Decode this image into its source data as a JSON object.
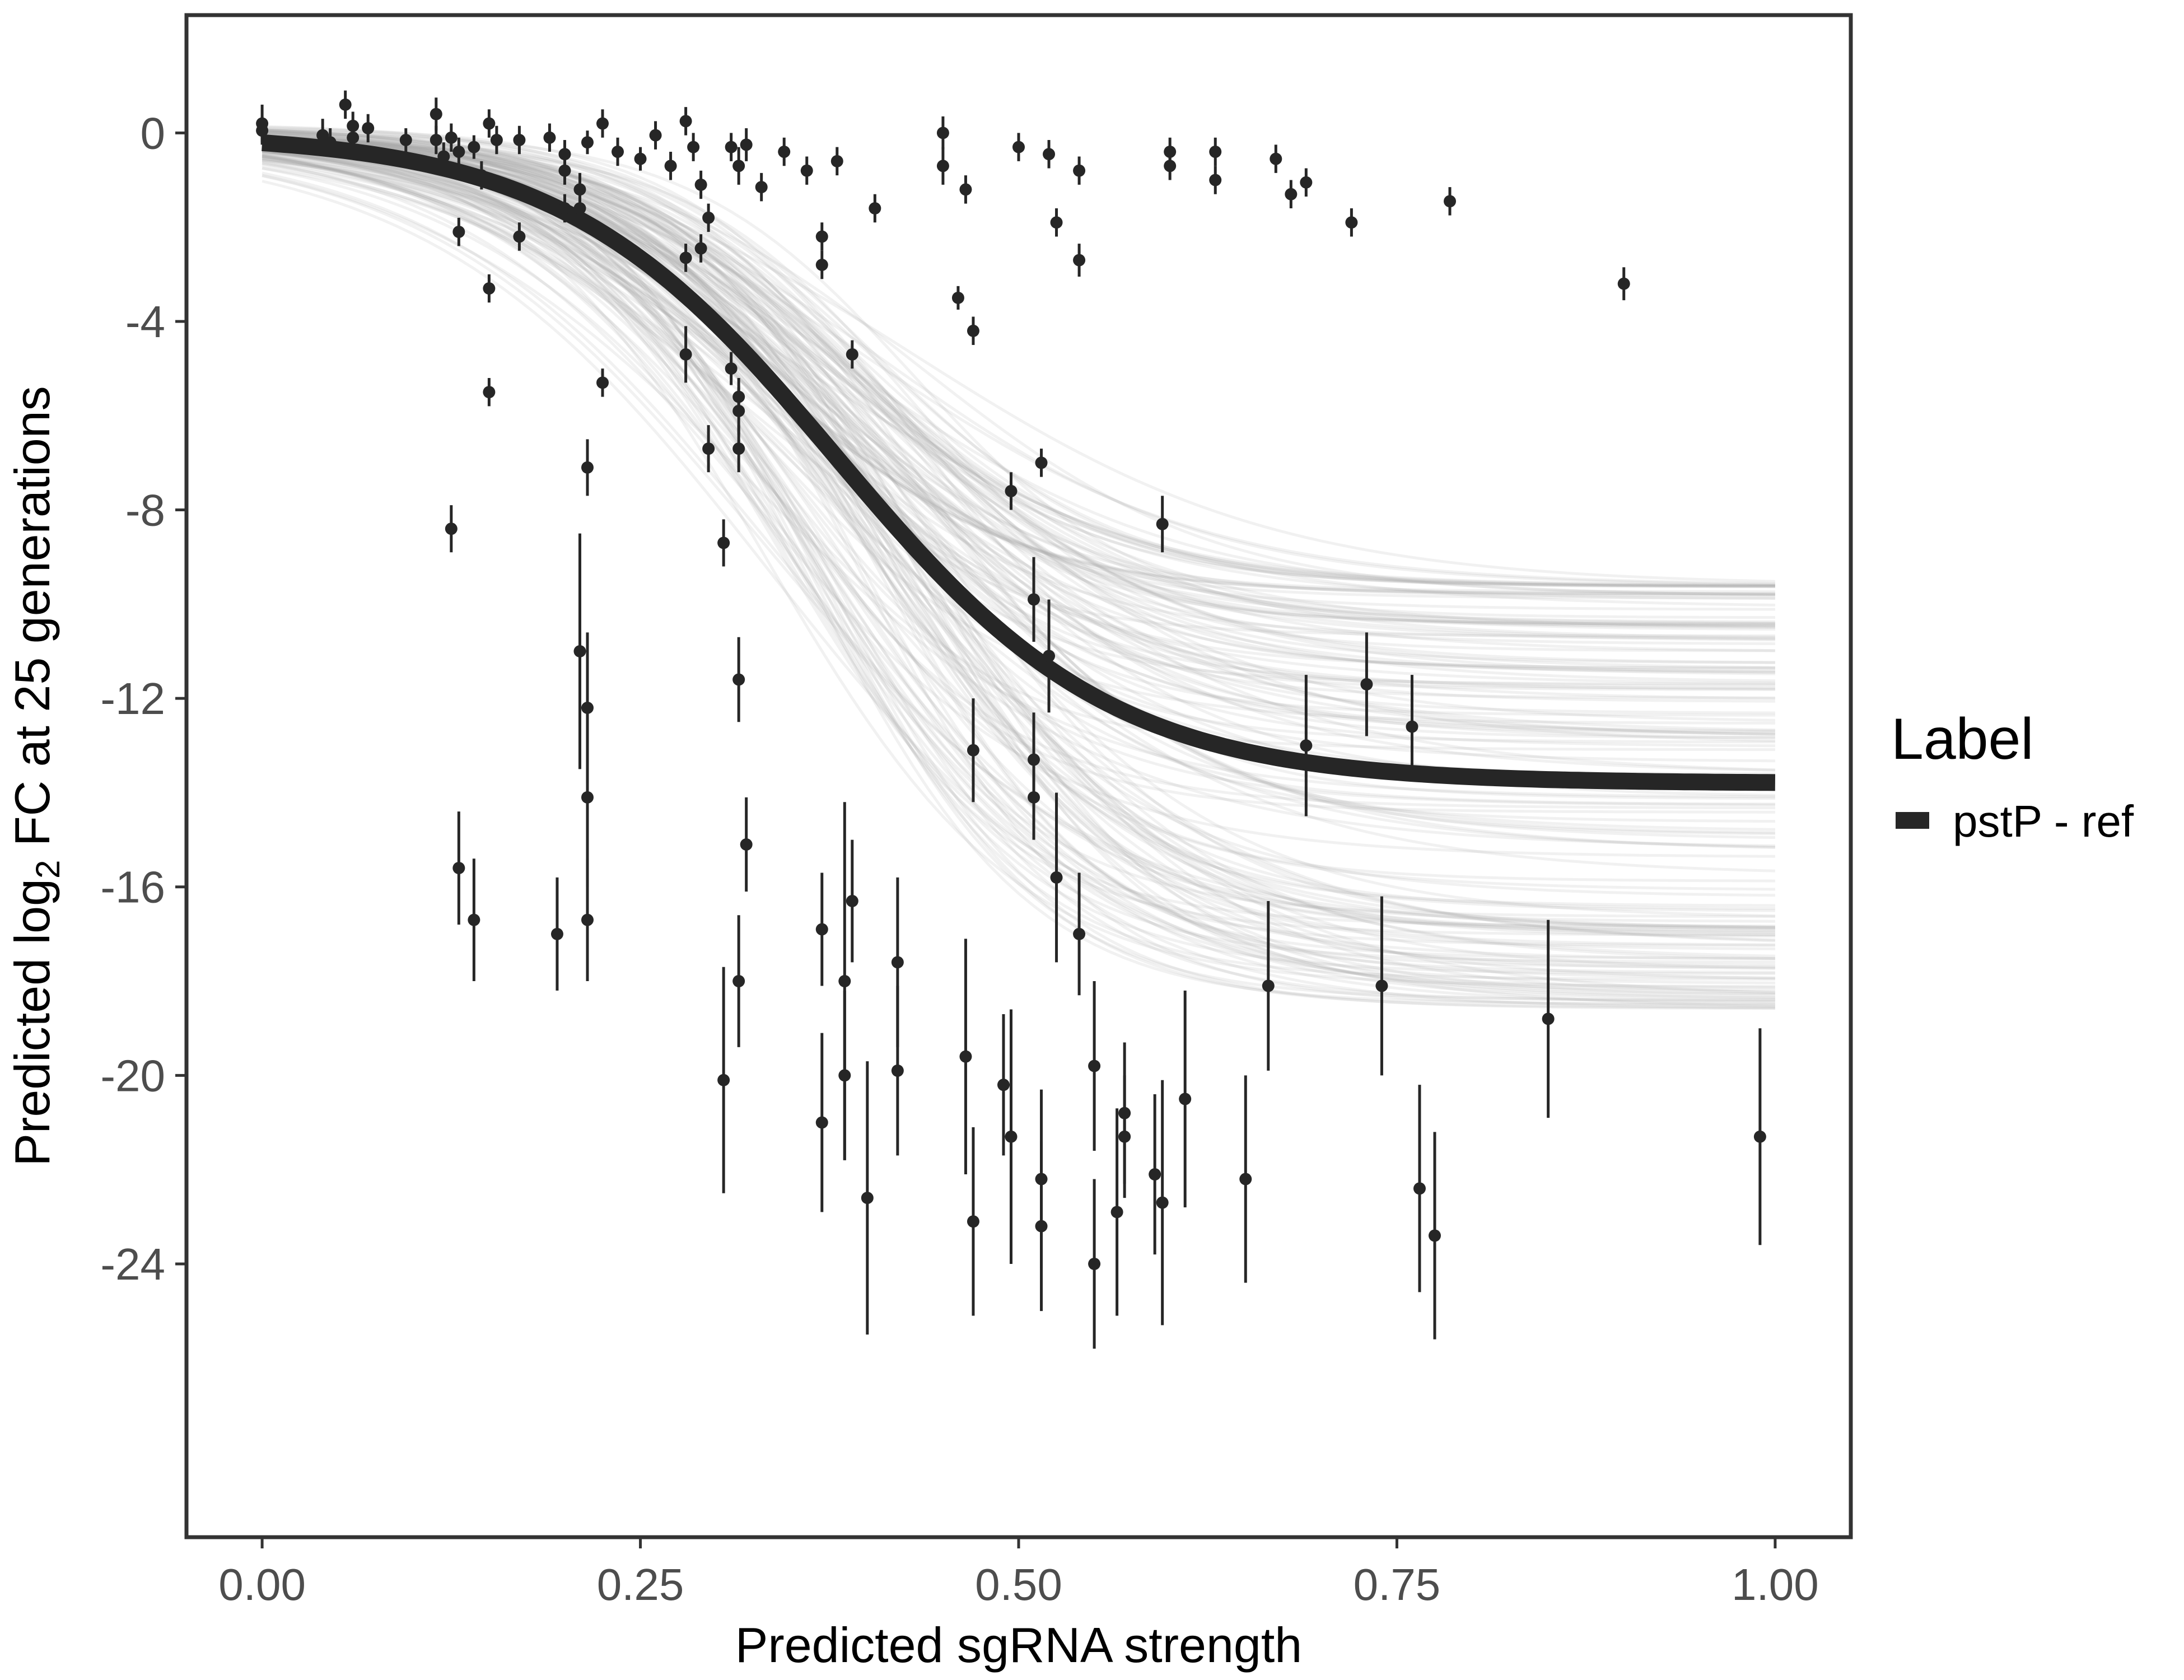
{
  "colors": {
    "background": "#ffffff",
    "panel_border": "#333333",
    "fit_line": "#262626",
    "posterior_draws": "#a6a6a6",
    "points": "#262626",
    "tick_text": "#4d4d4d"
  },
  "chart_data": {
    "type": "scatter",
    "title": "",
    "xlabel": "Predicted sgRNA strength",
    "ylabel_prefix": "Predicted  log",
    "ylabel_subscript": "2",
    "ylabel_suffix": " FC at 25 generations",
    "xlim": [
      -0.05,
      1.05
    ],
    "ylim": [
      -29.8,
      2.5
    ],
    "x_ticks": [
      0.0,
      0.25,
      0.5,
      0.75,
      1.0
    ],
    "x_tick_labels": [
      "0.00",
      "0.25",
      "0.50",
      "0.75",
      "1.00"
    ],
    "y_ticks": [
      0,
      -4,
      -8,
      -12,
      -16,
      -20,
      -24
    ],
    "y_tick_labels": [
      "0",
      "-4",
      "-8",
      "-12",
      "-16",
      "-20",
      "-24"
    ],
    "grid": false,
    "legend": {
      "title": "Label",
      "position": "right",
      "entries": [
        "pstP - ref"
      ]
    },
    "fit_curve": {
      "name": "pstP - ref",
      "form": "logistic",
      "upper": 0.0,
      "lower": -13.8,
      "midpoint": 0.38,
      "slope": 11.0,
      "ribbon_lower_asymptote_range": [
        -18.6,
        -9.6
      ]
    },
    "points": [
      {
        "x": 0.0,
        "y": 0.2,
        "err": 0.4
      },
      {
        "x": 0.0,
        "y": 0.05,
        "err": 0.3
      },
      {
        "x": 0.04,
        "y": -0.05,
        "err": 0.35
      },
      {
        "x": 0.045,
        "y": -0.2,
        "err": 0.3
      },
      {
        "x": 0.055,
        "y": 0.6,
        "err": 0.3
      },
      {
        "x": 0.06,
        "y": 0.15,
        "err": 0.3
      },
      {
        "x": 0.06,
        "y": -0.1,
        "err": 0.3
      },
      {
        "x": 0.07,
        "y": 0.1,
        "err": 0.3
      },
      {
        "x": 0.095,
        "y": -0.15,
        "err": 0.25
      },
      {
        "x": 0.115,
        "y": 0.4,
        "err": 0.35
      },
      {
        "x": 0.115,
        "y": -0.15,
        "err": 0.3
      },
      {
        "x": 0.12,
        "y": -0.5,
        "err": 0.3
      },
      {
        "x": 0.125,
        "y": -0.1,
        "err": 0.3
      },
      {
        "x": 0.13,
        "y": -0.4,
        "err": 0.3
      },
      {
        "x": 0.13,
        "y": -2.1,
        "err": 0.3
      },
      {
        "x": 0.14,
        "y": -0.3,
        "err": 0.25
      },
      {
        "x": 0.145,
        "y": -0.9,
        "err": 0.3
      },
      {
        "x": 0.15,
        "y": 0.2,
        "err": 0.3
      },
      {
        "x": 0.155,
        "y": -0.15,
        "err": 0.3
      },
      {
        "x": 0.15,
        "y": -3.3,
        "err": 0.3
      },
      {
        "x": 0.15,
        "y": -5.5,
        "err": 0.3
      },
      {
        "x": 0.17,
        "y": -0.15,
        "err": 0.3
      },
      {
        "x": 0.17,
        "y": -2.2,
        "err": 0.3
      },
      {
        "x": 0.19,
        "y": -0.1,
        "err": 0.3
      },
      {
        "x": 0.2,
        "y": -0.45,
        "err": 0.3
      },
      {
        "x": 0.2,
        "y": -0.8,
        "err": 0.3
      },
      {
        "x": 0.2,
        "y": -1.6,
        "err": 0.3
      },
      {
        "x": 0.21,
        "y": -1.2,
        "err": 0.35
      },
      {
        "x": 0.21,
        "y": -1.6,
        "err": 0.4
      },
      {
        "x": 0.215,
        "y": -0.2,
        "err": 0.25
      },
      {
        "x": 0.225,
        "y": 0.2,
        "err": 0.3
      },
      {
        "x": 0.235,
        "y": -0.4,
        "err": 0.3
      },
      {
        "x": 0.225,
        "y": -5.3,
        "err": 0.3
      },
      {
        "x": 0.25,
        "y": -0.55,
        "err": 0.25
      },
      {
        "x": 0.26,
        "y": -0.05,
        "err": 0.3
      },
      {
        "x": 0.27,
        "y": -0.7,
        "err": 0.3
      },
      {
        "x": 0.28,
        "y": 0.25,
        "err": 0.3
      },
      {
        "x": 0.285,
        "y": -0.3,
        "err": 0.3
      },
      {
        "x": 0.29,
        "y": -1.1,
        "err": 0.3
      },
      {
        "x": 0.295,
        "y": -1.8,
        "err": 0.3
      },
      {
        "x": 0.28,
        "y": -2.65,
        "err": 0.3
      },
      {
        "x": 0.29,
        "y": -2.45,
        "err": 0.3
      },
      {
        "x": 0.28,
        "y": -4.7,
        "err": 0.6
      },
      {
        "x": 0.295,
        "y": -6.7,
        "err": 0.5
      },
      {
        "x": 0.31,
        "y": -0.3,
        "err": 0.3
      },
      {
        "x": 0.315,
        "y": -0.7,
        "err": 0.4
      },
      {
        "x": 0.32,
        "y": -0.25,
        "err": 0.35
      },
      {
        "x": 0.33,
        "y": -1.15,
        "err": 0.3
      },
      {
        "x": 0.31,
        "y": -5.0,
        "err": 0.35
      },
      {
        "x": 0.315,
        "y": -5.6,
        "err": 0.4
      },
      {
        "x": 0.315,
        "y": -5.9,
        "err": 0.5
      },
      {
        "x": 0.315,
        "y": -6.7,
        "err": 0.5
      },
      {
        "x": 0.305,
        "y": -8.7,
        "err": 0.5
      },
      {
        "x": 0.315,
        "y": -11.6,
        "err": 0.9
      },
      {
        "x": 0.345,
        "y": -0.4,
        "err": 0.3
      },
      {
        "x": 0.36,
        "y": -0.8,
        "err": 0.3
      },
      {
        "x": 0.37,
        "y": -2.2,
        "err": 0.3
      },
      {
        "x": 0.37,
        "y": -2.8,
        "err": 0.3
      },
      {
        "x": 0.38,
        "y": -0.6,
        "err": 0.3
      },
      {
        "x": 0.39,
        "y": -4.7,
        "err": 0.3
      },
      {
        "x": 0.405,
        "y": -1.6,
        "err": 0.3
      },
      {
        "x": 0.45,
        "y": 0.0,
        "err": 0.35
      },
      {
        "x": 0.45,
        "y": -0.7,
        "err": 0.4
      },
      {
        "x": 0.465,
        "y": -1.2,
        "err": 0.3
      },
      {
        "x": 0.46,
        "y": -3.5,
        "err": 0.25
      },
      {
        "x": 0.47,
        "y": -4.2,
        "err": 0.3
      },
      {
        "x": 0.5,
        "y": -0.3,
        "err": 0.3
      },
      {
        "x": 0.52,
        "y": -0.45,
        "err": 0.3
      },
      {
        "x": 0.525,
        "y": -1.9,
        "err": 0.3
      },
      {
        "x": 0.54,
        "y": -0.8,
        "err": 0.3
      },
      {
        "x": 0.54,
        "y": -2.7,
        "err": 0.35
      },
      {
        "x": 0.6,
        "y": -0.4,
        "err": 0.3
      },
      {
        "x": 0.6,
        "y": -0.7,
        "err": 0.3
      },
      {
        "x": 0.63,
        "y": -0.4,
        "err": 0.3
      },
      {
        "x": 0.63,
        "y": -1.0,
        "err": 0.3
      },
      {
        "x": 0.67,
        "y": -0.55,
        "err": 0.3
      },
      {
        "x": 0.68,
        "y": -1.3,
        "err": 0.3
      },
      {
        "x": 0.69,
        "y": -1.05,
        "err": 0.3
      },
      {
        "x": 0.72,
        "y": -1.9,
        "err": 0.3
      },
      {
        "x": 0.785,
        "y": -1.45,
        "err": 0.3
      },
      {
        "x": 0.9,
        "y": -3.2,
        "err": 0.35
      },
      {
        "x": 0.125,
        "y": -8.4,
        "err": 0.5
      },
      {
        "x": 0.215,
        "y": -7.1,
        "err": 0.6
      },
      {
        "x": 0.21,
        "y": -11.0,
        "err": 2.5
      },
      {
        "x": 0.215,
        "y": -12.2,
        "err": 1.6
      },
      {
        "x": 0.215,
        "y": -14.1,
        "err": 1.9
      },
      {
        "x": 0.215,
        "y": -16.7,
        "err": 1.3
      },
      {
        "x": 0.13,
        "y": -15.6,
        "err": 1.2
      },
      {
        "x": 0.14,
        "y": -16.7,
        "err": 1.3
      },
      {
        "x": 0.195,
        "y": -17.0,
        "err": 1.2
      },
      {
        "x": 0.305,
        "y": -20.1,
        "err": 2.4
      },
      {
        "x": 0.315,
        "y": -18.0,
        "err": 1.4
      },
      {
        "x": 0.32,
        "y": -15.1,
        "err": 1.0
      },
      {
        "x": 0.37,
        "y": -16.9,
        "err": 1.2
      },
      {
        "x": 0.37,
        "y": -21.0,
        "err": 1.9
      },
      {
        "x": 0.385,
        "y": -20.0,
        "err": 1.8
      },
      {
        "x": 0.385,
        "y": -18.0,
        "err": 3.8
      },
      {
        "x": 0.39,
        "y": -16.3,
        "err": 1.3
      },
      {
        "x": 0.4,
        "y": -22.6,
        "err": 2.9
      },
      {
        "x": 0.42,
        "y": -17.6,
        "err": 1.8
      },
      {
        "x": 0.42,
        "y": -19.9,
        "err": 1.8
      },
      {
        "x": 0.465,
        "y": -19.6,
        "err": 2.5
      },
      {
        "x": 0.47,
        "y": -13.1,
        "err": 1.1
      },
      {
        "x": 0.47,
        "y": -23.1,
        "err": 2.0
      },
      {
        "x": 0.49,
        "y": -20.2,
        "err": 1.5
      },
      {
        "x": 0.495,
        "y": -21.3,
        "err": 2.7
      },
      {
        "x": 0.495,
        "y": -7.6,
        "err": 0.4
      },
      {
        "x": 0.51,
        "y": -9.9,
        "err": 0.9
      },
      {
        "x": 0.51,
        "y": -13.3,
        "err": 1.0
      },
      {
        "x": 0.51,
        "y": -14.1,
        "err": 0.9
      },
      {
        "x": 0.515,
        "y": -7.0,
        "err": 0.3
      },
      {
        "x": 0.515,
        "y": -22.2,
        "err": 1.9
      },
      {
        "x": 0.515,
        "y": -23.2,
        "err": 1.8
      },
      {
        "x": 0.52,
        "y": -11.1,
        "err": 1.2
      },
      {
        "x": 0.525,
        "y": -15.8,
        "err": 1.8
      },
      {
        "x": 0.54,
        "y": -17.0,
        "err": 1.3
      },
      {
        "x": 0.55,
        "y": -19.8,
        "err": 1.8
      },
      {
        "x": 0.55,
        "y": -24.0,
        "err": 1.8
      },
      {
        "x": 0.565,
        "y": -22.9,
        "err": 2.2
      },
      {
        "x": 0.57,
        "y": -20.8,
        "err": 1.5
      },
      {
        "x": 0.57,
        "y": -21.3,
        "err": 1.3
      },
      {
        "x": 0.59,
        "y": -22.1,
        "err": 1.7
      },
      {
        "x": 0.595,
        "y": -22.7,
        "err": 2.6
      },
      {
        "x": 0.595,
        "y": -8.3,
        "err": 0.6
      },
      {
        "x": 0.61,
        "y": -20.5,
        "err": 2.3
      },
      {
        "x": 0.65,
        "y": -22.2,
        "err": 2.2
      },
      {
        "x": 0.665,
        "y": -18.1,
        "err": 1.8
      },
      {
        "x": 0.69,
        "y": -13.0,
        "err": 1.5
      },
      {
        "x": 0.73,
        "y": -11.7,
        "err": 1.1
      },
      {
        "x": 0.74,
        "y": -18.1,
        "err": 1.9
      },
      {
        "x": 0.76,
        "y": -12.6,
        "err": 1.1
      },
      {
        "x": 0.765,
        "y": -22.4,
        "err": 2.2
      },
      {
        "x": 0.775,
        "y": -23.4,
        "err": 2.2
      },
      {
        "x": 0.85,
        "y": -18.8,
        "err": 2.1
      },
      {
        "x": 0.99,
        "y": -21.3,
        "err": 2.3
      }
    ]
  }
}
